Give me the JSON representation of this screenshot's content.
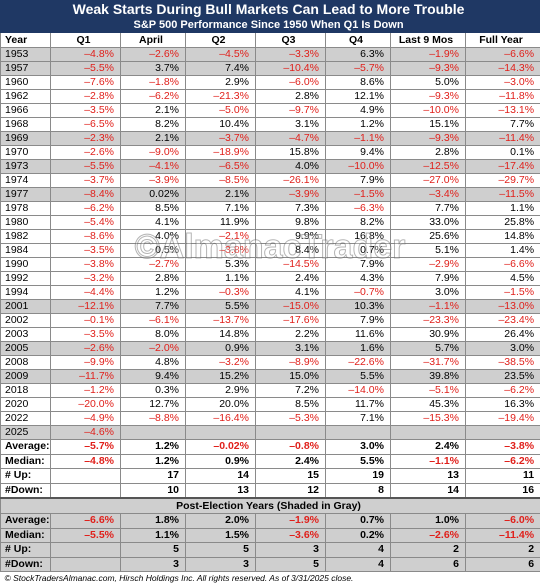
{
  "title": "Weak Starts During Bull Markets Can Lead to More Trouble",
  "subtitle": "S&P 500 Performance Since 1950 When Q1 Is Down",
  "watermark": "©AlmanacTrader",
  "table": {
    "columns": [
      "Year",
      "Q1",
      "April",
      "Q2",
      "Q3",
      "Q4",
      "Last 9 Mos",
      "Full Year"
    ],
    "rows": [
      {
        "shaded": true,
        "cells": [
          "1953",
          "–4.8%",
          "–2.6%",
          "–4.5%",
          "–3.3%",
          "6.3%",
          "–1.9%",
          "–6.6%"
        ]
      },
      {
        "shaded": true,
        "cells": [
          "1957",
          "–5.5%",
          "3.7%",
          "7.4%",
          "–10.4%",
          "–5.7%",
          "–9.3%",
          "–14.3%"
        ]
      },
      {
        "shaded": false,
        "cells": [
          "1960",
          "–7.6%",
          "–1.8%",
          "2.9%",
          "–6.0%",
          "8.6%",
          "5.0%",
          "–3.0%"
        ]
      },
      {
        "shaded": false,
        "cells": [
          "1962",
          "–2.8%",
          "–6.2%",
          "–21.3%",
          "2.8%",
          "12.1%",
          "–9.3%",
          "–11.8%"
        ]
      },
      {
        "shaded": false,
        "cells": [
          "1966",
          "–3.5%",
          "2.1%",
          "–5.0%",
          "–9.7%",
          "4.9%",
          "–10.0%",
          "–13.1%"
        ]
      },
      {
        "shaded": false,
        "cells": [
          "1968",
          "–6.5%",
          "8.2%",
          "10.4%",
          "3.1%",
          "1.2%",
          "15.1%",
          "7.7%"
        ]
      },
      {
        "shaded": true,
        "cells": [
          "1969",
          "–2.3%",
          "2.1%",
          "–3.7%",
          "–4.7%",
          "–1.1%",
          "–9.3%",
          "–11.4%"
        ]
      },
      {
        "shaded": false,
        "cells": [
          "1970",
          "–2.6%",
          "–9.0%",
          "–18.9%",
          "15.8%",
          "9.4%",
          "2.8%",
          "0.1%"
        ]
      },
      {
        "shaded": true,
        "cells": [
          "1973",
          "–5.5%",
          "–4.1%",
          "–6.5%",
          "4.0%",
          "–10.0%",
          "–12.5%",
          "–17.4%"
        ]
      },
      {
        "shaded": false,
        "cells": [
          "1974",
          "–3.7%",
          "–3.9%",
          "–8.5%",
          "–26.1%",
          "7.9%",
          "–27.0%",
          "–29.7%"
        ]
      },
      {
        "shaded": true,
        "cells": [
          "1977",
          "–8.4%",
          "0.02%",
          "2.1%",
          "–3.9%",
          "–1.5%",
          "–3.4%",
          "–11.5%"
        ]
      },
      {
        "shaded": false,
        "cells": [
          "1978",
          "–6.2%",
          "8.5%",
          "7.1%",
          "7.3%",
          "–6.3%",
          "7.7%",
          "1.1%"
        ]
      },
      {
        "shaded": false,
        "cells": [
          "1980",
          "–5.4%",
          "4.1%",
          "11.9%",
          "9.8%",
          "8.2%",
          "33.0%",
          "25.8%"
        ]
      },
      {
        "shaded": false,
        "cells": [
          "1982",
          "–8.6%",
          "4.0%",
          "–2.1%",
          "9.9%",
          "16.8%",
          "25.6%",
          "14.8%"
        ]
      },
      {
        "shaded": false,
        "cells": [
          "1984",
          "–3.5%",
          "0.5%",
          "–3.8%",
          "8.4%",
          "0.7%",
          "5.1%",
          "1.4%"
        ]
      },
      {
        "shaded": false,
        "cells": [
          "1990",
          "–3.8%",
          "–2.7%",
          "5.3%",
          "–14.5%",
          "7.9%",
          "–2.9%",
          "–6.6%"
        ]
      },
      {
        "shaded": false,
        "cells": [
          "1992",
          "–3.2%",
          "2.8%",
          "1.1%",
          "2.4%",
          "4.3%",
          "7.9%",
          "4.5%"
        ]
      },
      {
        "shaded": false,
        "cells": [
          "1994",
          "–4.4%",
          "1.2%",
          "–0.3%",
          "4.1%",
          "–0.7%",
          "3.0%",
          "–1.5%"
        ]
      },
      {
        "shaded": true,
        "cells": [
          "2001",
          "–12.1%",
          "7.7%",
          "5.5%",
          "–15.0%",
          "10.3%",
          "–1.1%",
          "–13.0%"
        ]
      },
      {
        "shaded": false,
        "cells": [
          "2002",
          "–0.1%",
          "–6.1%",
          "–13.7%",
          "–17.6%",
          "7.9%",
          "–23.3%",
          "–23.4%"
        ]
      },
      {
        "shaded": false,
        "cells": [
          "2003",
          "–3.5%",
          "8.0%",
          "14.8%",
          "2.2%",
          "11.6%",
          "30.9%",
          "26.4%"
        ]
      },
      {
        "shaded": true,
        "cells": [
          "2005",
          "–2.6%",
          "–2.0%",
          "0.9%",
          "3.1%",
          "1.6%",
          "5.7%",
          "3.0%"
        ]
      },
      {
        "shaded": false,
        "cells": [
          "2008",
          "–9.9%",
          "4.8%",
          "–3.2%",
          "–8.9%",
          "–22.6%",
          "–31.7%",
          "–38.5%"
        ]
      },
      {
        "shaded": true,
        "cells": [
          "2009",
          "–11.7%",
          "9.4%",
          "15.2%",
          "15.0%",
          "5.5%",
          "39.8%",
          "23.5%"
        ]
      },
      {
        "shaded": false,
        "cells": [
          "2018",
          "–1.2%",
          "0.3%",
          "2.9%",
          "7.2%",
          "–14.0%",
          "–5.1%",
          "–6.2%"
        ]
      },
      {
        "shaded": false,
        "cells": [
          "2020",
          "–20.0%",
          "12.7%",
          "20.0%",
          "8.5%",
          "11.7%",
          "45.3%",
          "16.3%"
        ]
      },
      {
        "shaded": false,
        "cells": [
          "2022",
          "–4.9%",
          "–8.8%",
          "–16.4%",
          "–5.3%",
          "7.1%",
          "–15.3%",
          "–19.4%"
        ]
      },
      {
        "shaded": true,
        "cells": [
          "2025",
          "–4.6%",
          null,
          null,
          null,
          null,
          null,
          null
        ]
      }
    ],
    "summary": [
      [
        "Average:",
        "–5.7%",
        "1.2%",
        "–0.02%",
        "–0.8%",
        "3.0%",
        "2.4%",
        "–3.8%"
      ],
      [
        "Median:",
        "–4.8%",
        "1.2%",
        "0.9%",
        "2.4%",
        "5.5%",
        "–1.1%",
        "–6.2%"
      ],
      [
        "# Up:",
        null,
        "17",
        "14",
        "15",
        "19",
        "13",
        "11"
      ],
      [
        "#Down:",
        null,
        "10",
        "13",
        "12",
        "8",
        "14",
        "16"
      ]
    ]
  },
  "post_election": {
    "title": "Post-Election Years (Shaded in Gray)",
    "rows": [
      [
        "Average:",
        "–6.6%",
        "1.8%",
        "2.0%",
        "–1.9%",
        "0.7%",
        "1.0%",
        "–6.0%"
      ],
      [
        "Median:",
        "–5.5%",
        "1.1%",
        "1.5%",
        "–3.6%",
        "0.2%",
        "–2.6%",
        "–11.4%"
      ],
      [
        "# Up:",
        null,
        "5",
        "5",
        "3",
        "4",
        "2",
        "2"
      ],
      [
        "#Down:",
        null,
        "3",
        "3",
        "5",
        "4",
        "6",
        "6"
      ]
    ]
  },
  "footer": "© StockTradersAlmanac.com, Hirsch Holdings Inc. All rights reserved. As of 3/31/2025 close."
}
